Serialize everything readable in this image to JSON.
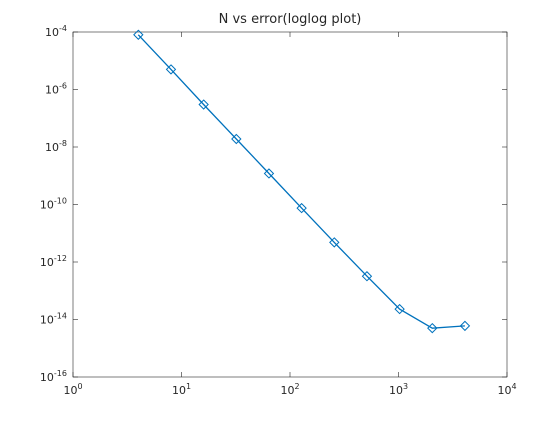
{
  "chart_data": {
    "type": "line",
    "title": "N vs error(loglog plot)",
    "xlabel": "",
    "ylabel": "",
    "xscale": "log",
    "yscale": "log",
    "xlim": [
      1,
      10000
    ],
    "ylim": [
      1e-16,
      0.0001
    ],
    "grid": false,
    "x_ticks": [
      {
        "mant": "10",
        "exp": "0"
      },
      {
        "mant": "10",
        "exp": "1"
      },
      {
        "mant": "10",
        "exp": "2"
      },
      {
        "mant": "10",
        "exp": "3"
      },
      {
        "mant": "10",
        "exp": "4"
      }
    ],
    "y_ticks": [
      {
        "mant": "10",
        "exp": "-4"
      },
      {
        "mant": "10",
        "exp": "-6"
      },
      {
        "mant": "10",
        "exp": "-8"
      },
      {
        "mant": "10",
        "exp": "-10"
      },
      {
        "mant": "10",
        "exp": "-12"
      },
      {
        "mant": "10",
        "exp": "-14"
      },
      {
        "mant": "10",
        "exp": "-16"
      }
    ],
    "series": [
      {
        "color": "#0072bd",
        "marker": "diamond",
        "x": [
          4,
          8,
          16,
          32,
          64,
          128,
          256,
          512,
          1024,
          2048,
          4096
        ],
        "y": [
          8e-05,
          5e-06,
          3e-07,
          1.9e-08,
          1.2e-09,
          7.5e-11,
          4.8e-12,
          3.2e-13,
          2.3e-14,
          5e-15,
          6e-15
        ]
      }
    ]
  }
}
